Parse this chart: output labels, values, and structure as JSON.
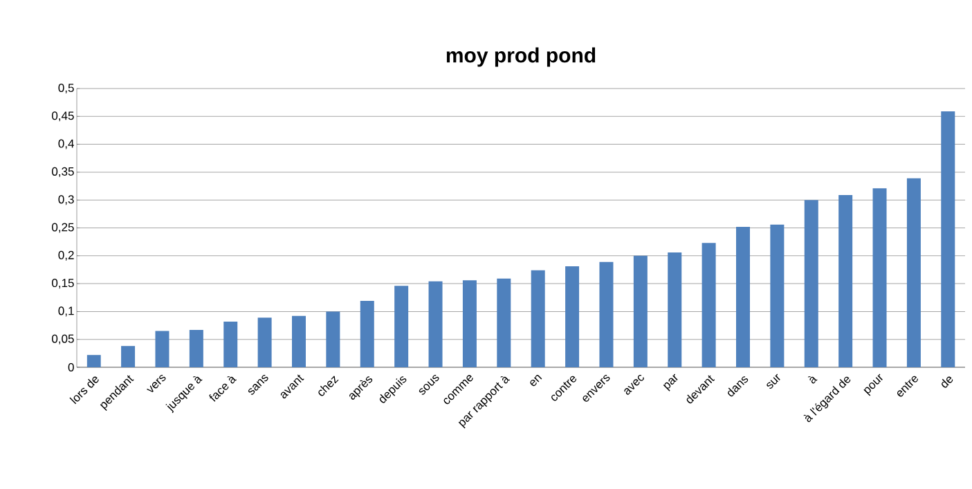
{
  "chart_data": {
    "type": "bar",
    "title": "moy prod pond",
    "categories": [
      "lors de",
      "pendant",
      "vers",
      "jusque à",
      "face à",
      "sans",
      "avant",
      "chez",
      "après",
      "depuis",
      "sous",
      "comme",
      "par rapport à",
      "en",
      "contre",
      "envers",
      "avec",
      "par",
      "devant",
      "dans",
      "sur",
      "à",
      "à l'égard de",
      "pour",
      "entre",
      "de"
    ],
    "values": [
      0.022,
      0.038,
      0.065,
      0.067,
      0.082,
      0.089,
      0.092,
      0.1,
      0.119,
      0.146,
      0.154,
      0.156,
      0.159,
      0.174,
      0.181,
      0.189,
      0.2,
      0.206,
      0.223,
      0.252,
      0.256,
      0.3,
      0.309,
      0.321,
      0.339,
      0.459
    ],
    "color": "#4f81bd",
    "ylim": [
      0,
      0.5
    ],
    "yticks": [
      0,
      {
        "value": 0.05,
        "label": "0,05"
      },
      {
        "value": 0.1,
        "label": "0,1"
      },
      {
        "value": 0.15,
        "label": "0,15"
      },
      {
        "value": 0.2,
        "label": "0,2"
      },
      {
        "value": 0.25,
        "label": "0,25"
      },
      {
        "value": 0.3,
        "label": "0,3"
      },
      {
        "value": 0.35,
        "label": "0,35"
      },
      {
        "value": 0.4,
        "label": "0,4"
      },
      {
        "value": 0.45,
        "label": "0,45"
      },
      {
        "value": 0.5,
        "label": "0,5"
      }
    ],
    "grid": "y"
  }
}
